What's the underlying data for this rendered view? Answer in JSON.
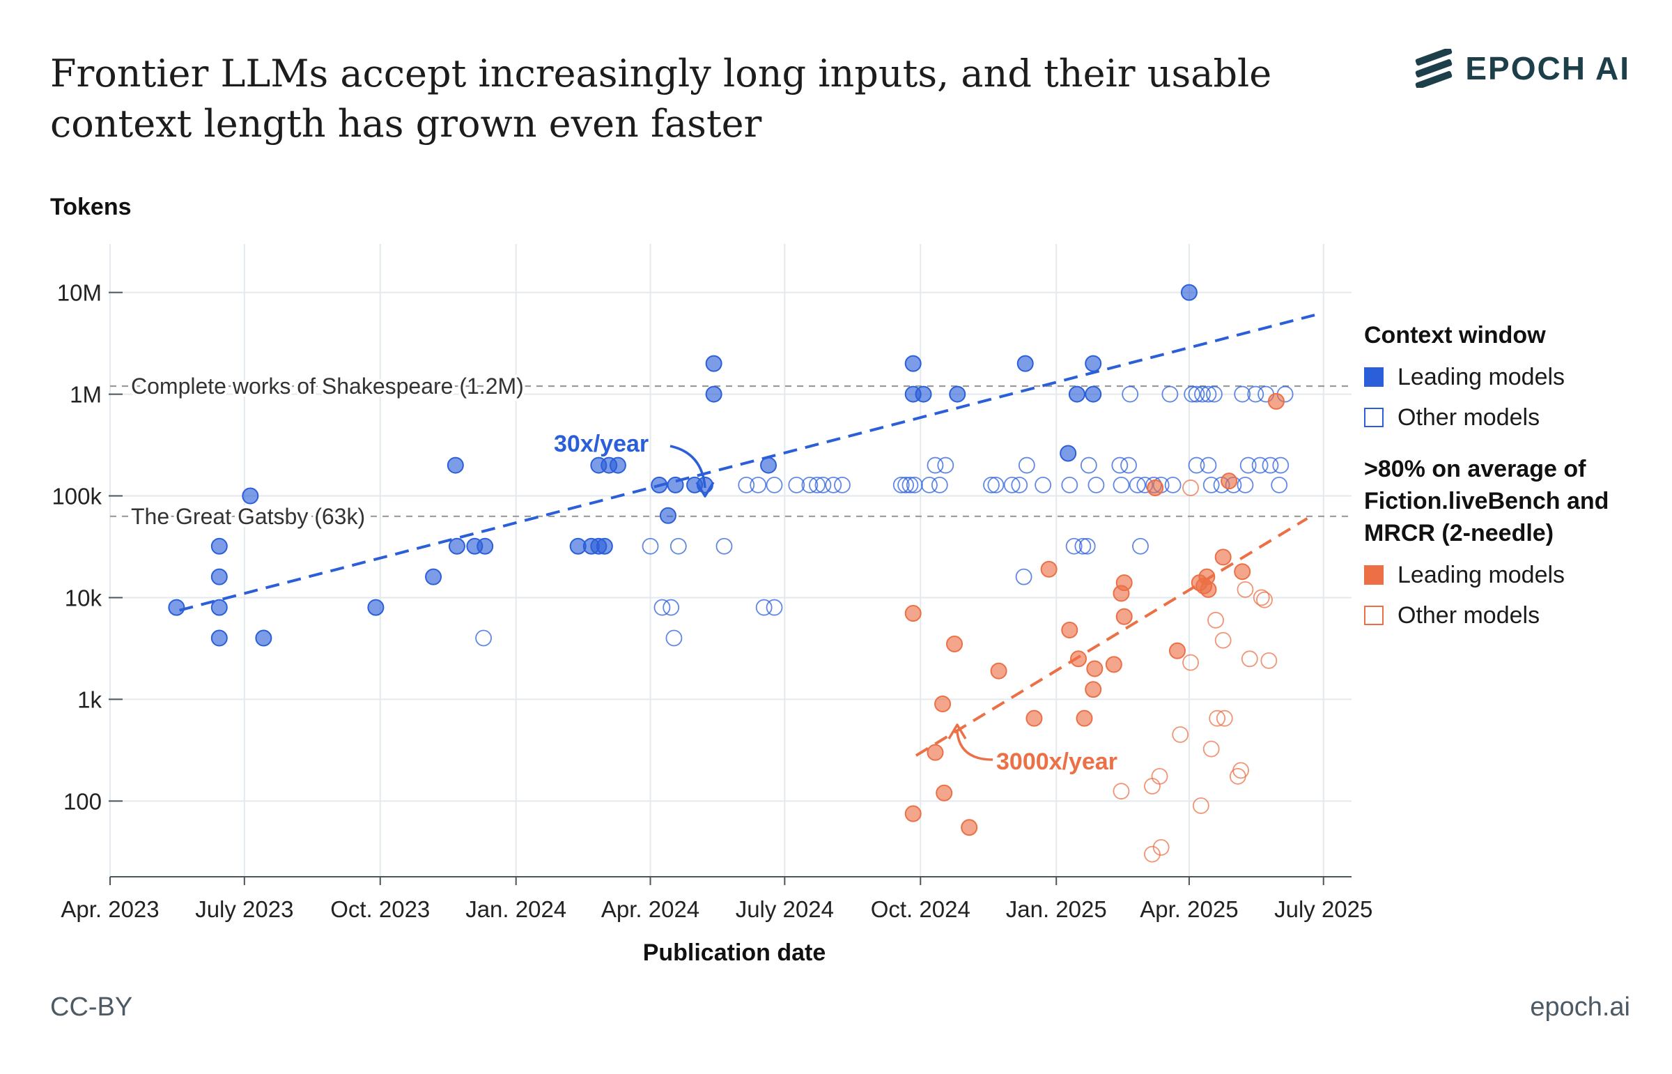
{
  "header": {
    "title": "Frontier LLMs accept increasingly long inputs, and their usable context length has grown even faster",
    "brand": "EPOCH AI"
  },
  "footer": {
    "license": "CC-BY",
    "site": "epoch.ai"
  },
  "colors": {
    "blue": "#2b5fd9",
    "orange": "#ec6f45",
    "grid": "#e3e9ec",
    "refline": "#9a9a9a",
    "axis": "#4a555c"
  },
  "chart_data": {
    "type": "scatter",
    "xlabel": "Publication date",
    "ylabel": "Tokens",
    "y_scale": "log",
    "ylim": [
      18,
      30000000
    ],
    "xlim": [
      "2023-04-01",
      "2025-07-20"
    ],
    "x_ticks": [
      {
        "date": "2023-04-01",
        "label": "Apr. 2023"
      },
      {
        "date": "2023-07-01",
        "label": "July 2023"
      },
      {
        "date": "2023-10-01",
        "label": "Oct. 2023"
      },
      {
        "date": "2024-01-01",
        "label": "Jan. 2024"
      },
      {
        "date": "2024-04-01",
        "label": "Apr. 2024"
      },
      {
        "date": "2024-07-01",
        "label": "July 2024"
      },
      {
        "date": "2024-10-01",
        "label": "Oct. 2024"
      },
      {
        "date": "2025-01-01",
        "label": "Jan. 2025"
      },
      {
        "date": "2025-04-01",
        "label": "Apr. 2025"
      },
      {
        "date": "2025-07-01",
        "label": "July 2025"
      }
    ],
    "y_ticks": [
      {
        "value": 100,
        "label": "100"
      },
      {
        "value": 1000,
        "label": "1k"
      },
      {
        "value": 10000,
        "label": "10k"
      },
      {
        "value": 100000,
        "label": "100k"
      },
      {
        "value": 1000000,
        "label": "1M"
      },
      {
        "value": 10000000,
        "label": "10M"
      }
    ],
    "reference_lines": [
      {
        "value": 1200000,
        "label": "Complete works of Shakespeare (1.2M)"
      },
      {
        "value": 63000,
        "label": "The Great Gatsby (63k)"
      }
    ],
    "legend": {
      "position": "right",
      "groups": [
        {
          "title": "Context window",
          "items": [
            "Leading models",
            "Other models"
          ]
        },
        {
          "title": ">80% on average of Fiction.liveBench and MRCR (2-needle)",
          "items": [
            "Leading models",
            "Other models"
          ]
        }
      ]
    },
    "trend_lines": [
      {
        "group": "context",
        "label": "30x/year",
        "from": {
          "x": "2023-05-18",
          "y": 7500
        },
        "to": {
          "x": "2025-06-25",
          "y": 6000000
        }
      },
      {
        "group": "usable",
        "label": "3000x/year",
        "from": {
          "x": "2024-09-28",
          "y": 280
        },
        "to": {
          "x": "2025-06-20",
          "y": 60000
        }
      }
    ],
    "series": [
      {
        "group": "context",
        "style": "leading",
        "points": [
          [
            "2023-05-16",
            8000
          ],
          [
            "2023-06-14",
            4000
          ],
          [
            "2023-06-14",
            8000
          ],
          [
            "2023-06-14",
            16000
          ],
          [
            "2023-06-14",
            32000
          ],
          [
            "2023-07-05",
            100000
          ],
          [
            "2023-07-14",
            4000
          ],
          [
            "2023-09-28",
            8000
          ],
          [
            "2023-11-06",
            16000
          ],
          [
            "2023-11-21",
            200000
          ],
          [
            "2023-11-22",
            32000
          ],
          [
            "2023-12-04",
            32000
          ],
          [
            "2023-12-11",
            32000
          ],
          [
            "2024-02-12",
            32000
          ],
          [
            "2024-02-21",
            32000
          ],
          [
            "2024-02-26",
            32000
          ],
          [
            "2024-03-01",
            32000
          ],
          [
            "2024-02-26",
            200000
          ],
          [
            "2024-03-04",
            200000
          ],
          [
            "2024-03-10",
            200000
          ],
          [
            "2024-04-07",
            128000
          ],
          [
            "2024-04-13",
            64000
          ],
          [
            "2024-04-18",
            128000
          ],
          [
            "2024-05-01",
            128000
          ],
          [
            "2024-05-08",
            128000
          ],
          [
            "2024-05-14",
            1000000
          ],
          [
            "2024-05-14",
            2000000
          ],
          [
            "2024-06-20",
            200000
          ],
          [
            "2024-09-26",
            2000000
          ],
          [
            "2024-09-26",
            1000000
          ],
          [
            "2024-10-03",
            1000000
          ],
          [
            "2024-10-26",
            1000000
          ],
          [
            "2024-12-11",
            2000000
          ],
          [
            "2025-01-09",
            262000
          ],
          [
            "2025-01-15",
            1000000
          ],
          [
            "2025-01-26",
            1000000
          ],
          [
            "2025-01-26",
            2000000
          ],
          [
            "2025-04-01",
            10000000
          ]
        ]
      },
      {
        "group": "context",
        "style": "other",
        "points": [
          [
            "2023-12-10",
            4000
          ],
          [
            "2024-04-01",
            32000
          ],
          [
            "2024-04-09",
            8000
          ],
          [
            "2024-04-15",
            8000
          ],
          [
            "2024-04-17",
            4000
          ],
          [
            "2024-04-20",
            32000
          ],
          [
            "2024-05-21",
            32000
          ],
          [
            "2024-06-05",
            128000
          ],
          [
            "2024-06-13",
            128000
          ],
          [
            "2024-06-17",
            8000
          ],
          [
            "2024-06-24",
            8000
          ],
          [
            "2024-06-24",
            128000
          ],
          [
            "2024-07-09",
            128000
          ],
          [
            "2024-07-18",
            128000
          ],
          [
            "2024-07-23",
            128000
          ],
          [
            "2024-07-27",
            128000
          ],
          [
            "2024-08-03",
            128000
          ],
          [
            "2024-08-09",
            128000
          ],
          [
            "2024-09-18",
            128000
          ],
          [
            "2024-09-21",
            128000
          ],
          [
            "2024-09-24",
            128000
          ],
          [
            "2024-09-27",
            128000
          ],
          [
            "2024-10-07",
            128000
          ],
          [
            "2024-10-11",
            200000
          ],
          [
            "2024-10-14",
            128000
          ],
          [
            "2024-10-18",
            200000
          ],
          [
            "2024-11-18",
            128000
          ],
          [
            "2024-11-21",
            128000
          ],
          [
            "2024-12-02",
            128000
          ],
          [
            "2024-12-07",
            128000
          ],
          [
            "2024-12-10",
            16000
          ],
          [
            "2024-12-12",
            200000
          ],
          [
            "2024-12-23",
            128000
          ],
          [
            "2025-01-10",
            128000
          ],
          [
            "2025-01-13",
            32000
          ],
          [
            "2025-01-19",
            32000
          ],
          [
            "2025-01-22",
            32000
          ],
          [
            "2025-01-23",
            200000
          ],
          [
            "2025-01-28",
            128000
          ],
          [
            "2025-02-13",
            200000
          ],
          [
            "2025-02-14",
            128000
          ],
          [
            "2025-02-19",
            200000
          ],
          [
            "2025-02-20",
            1000000
          ],
          [
            "2025-02-25",
            128000
          ],
          [
            "2025-02-27",
            32000
          ],
          [
            "2025-03-02",
            128000
          ],
          [
            "2025-03-08",
            128000
          ],
          [
            "2025-03-13",
            128000
          ],
          [
            "2025-03-19",
            1000000
          ],
          [
            "2025-03-21",
            128000
          ],
          [
            "2025-04-03",
            1000000
          ],
          [
            "2025-04-06",
            1000000
          ],
          [
            "2025-04-06",
            200000
          ],
          [
            "2025-04-10",
            1000000
          ],
          [
            "2025-04-14",
            1000000
          ],
          [
            "2025-04-14",
            200000
          ],
          [
            "2025-04-16",
            128000
          ],
          [
            "2025-04-18",
            1000000
          ],
          [
            "2025-04-23",
            128000
          ],
          [
            "2025-05-01",
            128000
          ],
          [
            "2025-05-07",
            1000000
          ],
          [
            "2025-05-09",
            128000
          ],
          [
            "2025-05-11",
            200000
          ],
          [
            "2025-05-16",
            1000000
          ],
          [
            "2025-05-19",
            200000
          ],
          [
            "2025-05-23",
            1000000
          ],
          [
            "2025-05-26",
            200000
          ],
          [
            "2025-06-01",
            128000
          ],
          [
            "2025-06-02",
            200000
          ],
          [
            "2025-06-05",
            1000000
          ]
        ]
      },
      {
        "group": "usable",
        "style": "leading",
        "points": [
          [
            "2024-09-26",
            75
          ],
          [
            "2024-09-26",
            7000
          ],
          [
            "2024-10-11",
            300
          ],
          [
            "2024-10-16",
            900
          ],
          [
            "2024-10-17",
            120
          ],
          [
            "2024-10-24",
            3500
          ],
          [
            "2024-11-03",
            55
          ],
          [
            "2024-11-23",
            1900
          ],
          [
            "2024-12-17",
            650
          ],
          [
            "2024-12-27",
            19000
          ],
          [
            "2025-01-10",
            4800
          ],
          [
            "2025-01-16",
            2500
          ],
          [
            "2025-01-20",
            650
          ],
          [
            "2025-01-26",
            1250
          ],
          [
            "2025-01-27",
            2000
          ],
          [
            "2025-02-09",
            2200
          ],
          [
            "2025-02-14",
            11000
          ],
          [
            "2025-02-16",
            14000
          ],
          [
            "2025-02-16",
            6500
          ],
          [
            "2025-03-09",
            120000
          ],
          [
            "2025-03-24",
            3000
          ],
          [
            "2025-04-08",
            14000
          ],
          [
            "2025-04-11",
            13000
          ],
          [
            "2025-04-13",
            16000
          ],
          [
            "2025-04-14",
            12000
          ],
          [
            "2025-04-24",
            25000
          ],
          [
            "2025-04-28",
            140000
          ],
          [
            "2025-05-07",
            18000
          ],
          [
            "2025-05-30",
            850000
          ]
        ]
      },
      {
        "group": "usable",
        "style": "other",
        "points": [
          [
            "2025-03-07",
            30
          ],
          [
            "2025-03-13",
            35
          ],
          [
            "2025-02-14",
            125
          ],
          [
            "2025-03-07",
            140
          ],
          [
            "2025-03-12",
            175
          ],
          [
            "2025-03-26",
            450
          ],
          [
            "2025-04-02",
            2300
          ],
          [
            "2025-04-02",
            120000
          ],
          [
            "2025-04-09",
            90
          ],
          [
            "2025-04-16",
            325
          ],
          [
            "2025-04-19",
            6000
          ],
          [
            "2025-04-20",
            650
          ],
          [
            "2025-04-24",
            3800
          ],
          [
            "2025-04-25",
            650
          ],
          [
            "2025-05-04",
            175
          ],
          [
            "2025-05-06",
            200
          ],
          [
            "2025-05-09",
            12000
          ],
          [
            "2025-05-12",
            2500
          ],
          [
            "2025-05-20",
            10000
          ],
          [
            "2025-05-22",
            9500
          ],
          [
            "2025-05-25",
            2400
          ],
          [
            "2025-03-09",
            120000
          ]
        ]
      }
    ]
  }
}
